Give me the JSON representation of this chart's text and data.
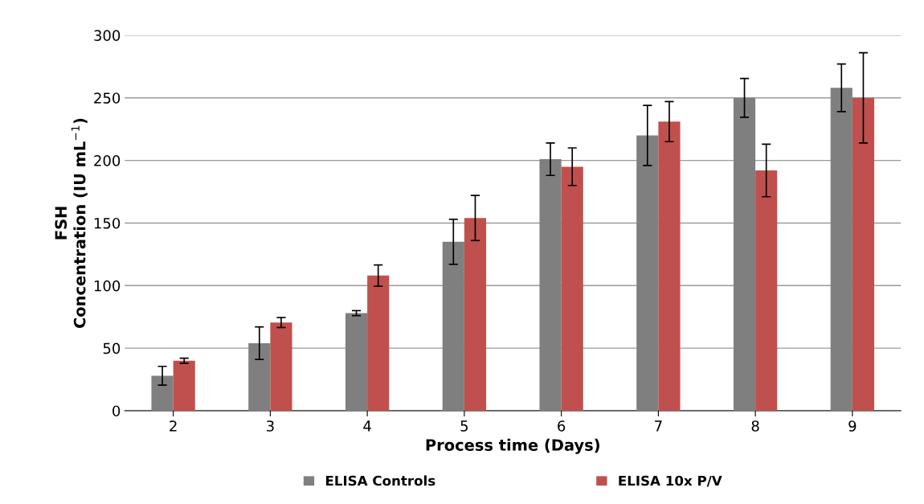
{
  "chart_data": {
    "type": "bar",
    "xlabel": "Process time (Days)",
    "ylabel": "FSH\nConcentration (IU mL$^{−1}$)",
    "categories": [
      "2",
      "3",
      "4",
      "5",
      "6",
      "7",
      "8",
      "9"
    ],
    "series": [
      {
        "name": "ELISA Controls",
        "color": "#7f7f7f",
        "values": [
          28,
          54,
          78,
          135,
          201,
          220,
          250,
          258
        ],
        "errors": [
          7.5,
          13,
          2,
          18,
          13,
          24,
          15.5,
          19
        ]
      },
      {
        "name": "ELISA 10x P/V",
        "color": "#c0504d",
        "values": [
          40,
          70.5,
          108,
          154,
          195,
          231,
          192,
          250
        ],
        "errors": [
          2,
          4,
          8.5,
          18,
          15,
          16,
          21,
          36
        ]
      }
    ],
    "ylim": [
      0,
      300
    ],
    "yticks": [
      0,
      50,
      100,
      150,
      200,
      250,
      300
    ],
    "grid": "y",
    "legend": "bottom"
  }
}
